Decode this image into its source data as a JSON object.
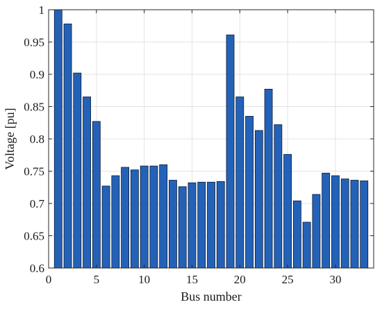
{
  "chart_data": {
    "type": "bar",
    "xlabel": "Bus number",
    "ylabel": "Voltage [pu]",
    "xlim": [
      0,
      34
    ],
    "ylim": [
      0.6,
      1.0
    ],
    "x_ticks": [
      0,
      5,
      10,
      15,
      20,
      25,
      30
    ],
    "y_ticks": [
      0.6,
      0.65,
      0.7,
      0.75,
      0.8,
      0.85,
      0.9,
      0.95,
      1
    ],
    "x_tick_labels": [
      "0",
      "5",
      "10",
      "15",
      "20",
      "25",
      "30"
    ],
    "y_tick_labels": [
      "0.6",
      "0.65",
      "0.7",
      "0.75",
      "0.8",
      "0.85",
      "0.9",
      "0.95",
      "1"
    ],
    "grid": true,
    "bar_color": "#2462b8",
    "bar_edge_color": "#0b1a33",
    "grid_color": "#e3e3e3",
    "categories": [
      1,
      2,
      3,
      4,
      5,
      6,
      7,
      8,
      9,
      10,
      11,
      12,
      13,
      14,
      15,
      16,
      17,
      18,
      19,
      20,
      21,
      22,
      23,
      24,
      25,
      26,
      27,
      28,
      29,
      30,
      31,
      32,
      33
    ],
    "values": [
      1.0,
      0.978,
      0.902,
      0.865,
      0.827,
      0.727,
      0.743,
      0.756,
      0.752,
      0.758,
      0.758,
      0.76,
      0.736,
      0.726,
      0.732,
      0.733,
      0.733,
      0.734,
      0.961,
      0.865,
      0.835,
      0.813,
      0.877,
      0.822,
      0.776,
      0.704,
      0.671,
      0.714,
      0.747,
      0.743,
      0.738,
      0.736,
      0.735
    ]
  }
}
